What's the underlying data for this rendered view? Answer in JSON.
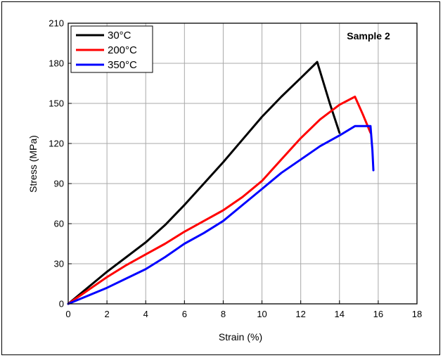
{
  "chart_data": {
    "type": "line",
    "title": "",
    "xlabel": "Strain (%)",
    "ylabel": "Stress (MPa)",
    "xlim": [
      0,
      18
    ],
    "ylim": [
      0,
      210
    ],
    "xticks": [
      0,
      2,
      4,
      6,
      8,
      10,
      12,
      14,
      16,
      18
    ],
    "yticks": [
      0,
      30,
      60,
      90,
      120,
      150,
      180,
      210
    ],
    "grid": true,
    "legend_position": "top-left",
    "annotation": "Sample 2",
    "series": [
      {
        "name": "30°C",
        "color": "#000000",
        "x": [
          0,
          1,
          2,
          3,
          4,
          5,
          6,
          7,
          8,
          9,
          10,
          11,
          12,
          12.85,
          13.5,
          14.0
        ],
        "y": [
          0,
          12,
          24,
          35,
          46,
          59,
          74,
          90,
          106,
          123,
          140,
          155,
          169,
          181,
          150,
          128
        ]
      },
      {
        "name": "200°C",
        "color": "#ff0000",
        "x": [
          0,
          1,
          2,
          3,
          4,
          5,
          6,
          7,
          8,
          9,
          10,
          11,
          12,
          13,
          14,
          14.8,
          15.2,
          15.6
        ],
        "y": [
          0,
          10,
          20,
          29,
          37,
          45,
          54,
          62,
          70,
          80,
          92,
          108,
          124,
          138,
          149,
          155,
          142,
          128
        ]
      },
      {
        "name": "350°C",
        "color": "#0000ff",
        "x": [
          0,
          1,
          2,
          3,
          4,
          5,
          6,
          7,
          8,
          9,
          10,
          11,
          12,
          13,
          14,
          14.8,
          15.4,
          15.6,
          15.7,
          15.75
        ],
        "y": [
          0,
          6,
          12,
          19,
          26,
          35,
          45,
          53,
          62,
          74,
          86,
          98,
          108,
          118,
          126,
          133,
          133,
          133,
          115,
          100
        ]
      }
    ]
  }
}
